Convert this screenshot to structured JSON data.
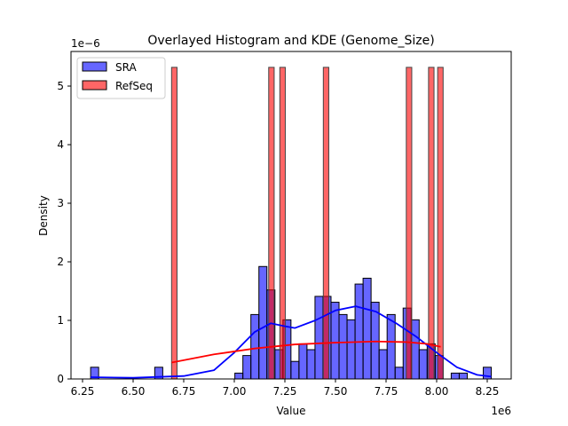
{
  "chart_data": {
    "type": "bar",
    "title": "Overlayed Histogram and KDE (Genome_Size)",
    "xlabel": "Value",
    "ylabel": "Density",
    "x_offset_label": "1e6",
    "y_offset_label": "1e−6",
    "xlim": [
      6.2,
      8.35
    ],
    "ylim": [
      0,
      5.58
    ],
    "xticks": [
      6.25,
      6.5,
      6.75,
      7.0,
      7.25,
      7.5,
      7.75,
      8.0,
      8.25
    ],
    "xtick_labels": [
      "6.25",
      "6.50",
      "6.75",
      "7.00",
      "7.25",
      "7.50",
      "7.75",
      "8.00",
      "8.25"
    ],
    "yticks": [
      0,
      1,
      2,
      3,
      4,
      5
    ],
    "ytick_labels": [
      "0",
      "1",
      "2",
      "3",
      "4",
      "5"
    ],
    "legend_position": "top-left",
    "grid": false,
    "series": [
      {
        "name": "SRA",
        "color": "#0000ff",
        "bin_start": 6.29,
        "bin_width": 0.0396,
        "values": [
          0.2,
          0,
          0,
          0,
          0,
          0,
          0,
          0,
          0.2,
          0,
          0,
          0,
          0,
          0,
          0,
          0,
          0,
          0,
          0.1,
          0.4,
          1.1,
          1.92,
          1.52,
          0.5,
          1.01,
          0.3,
          0.6,
          0.5,
          1.41,
          1.41,
          1.31,
          1.1,
          1.01,
          1.62,
          1.72,
          1.31,
          0.5,
          1.1,
          0.2,
          1.21,
          1.01,
          0.5,
          0.6,
          0.4,
          0,
          0.1,
          0.1,
          0,
          0,
          0.2
        ],
        "kde": {
          "x": [
            6.29,
            6.5,
            6.75,
            6.9,
            7.0,
            7.1,
            7.18,
            7.25,
            7.3,
            7.4,
            7.5,
            7.6,
            7.7,
            7.8,
            7.9,
            8.0,
            8.1,
            8.2,
            8.27
          ],
          "y": [
            0.03,
            0.02,
            0.05,
            0.15,
            0.45,
            0.8,
            0.95,
            0.9,
            0.87,
            1.0,
            1.17,
            1.24,
            1.15,
            0.95,
            0.72,
            0.45,
            0.2,
            0.07,
            0.04
          ]
        }
      },
      {
        "name": "RefSeq",
        "color": "#ff0000",
        "bin_width": 0.027,
        "bin_starts": [
          6.69,
          7.17,
          7.225,
          7.44,
          7.85,
          7.96,
          8.005
        ],
        "values": [
          5.32,
          5.32,
          5.32,
          5.32,
          5.32,
          5.32,
          5.32
        ],
        "kde": {
          "x": [
            6.69,
            6.9,
            7.1,
            7.3,
            7.5,
            7.7,
            7.85,
            7.95,
            8.02
          ],
          "y": [
            0.28,
            0.42,
            0.52,
            0.59,
            0.62,
            0.64,
            0.63,
            0.6,
            0.55
          ]
        }
      }
    ]
  }
}
